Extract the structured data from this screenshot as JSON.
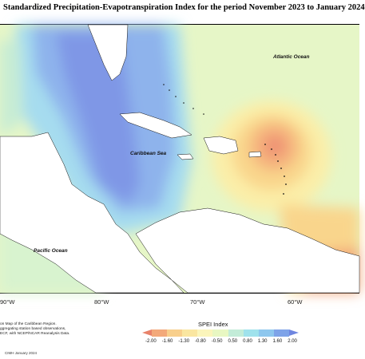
{
  "title": "Standardized Precipitation-Evapotranspiration Index for the period November 2023 to January 2024",
  "labels": {
    "atlantic": "Atlantic Ocean",
    "caribbean": "Caribbean Sea",
    "pacific": "Pacific Ocean"
  },
  "longitudes": [
    "90°W",
    "80°W",
    "70°W",
    "60°W"
  ],
  "credits": [
    "on Map of the Caribbean Region.",
    "ggregating station based observations,",
    "ECF, with NCEP/NCAR Reanalysis Data."
  ],
  "legend": {
    "title": "SPEI Index",
    "ticks": [
      "-2.00",
      "-1.60",
      "-1.30",
      "-0.80",
      "-0.50",
      "0.50",
      "0.80",
      "1.30",
      "1.60",
      "2.00"
    ],
    "colors": [
      "#e8826a",
      "#f3a97a",
      "#f8cf8c",
      "#fae6a0",
      "#fbf5bb",
      "#e8f7c2",
      "#c3ecd8",
      "#9fe2ec",
      "#8ec7ee",
      "#7ea3e8",
      "#6f86e0"
    ]
  },
  "footer": "CIMH January 2024"
}
